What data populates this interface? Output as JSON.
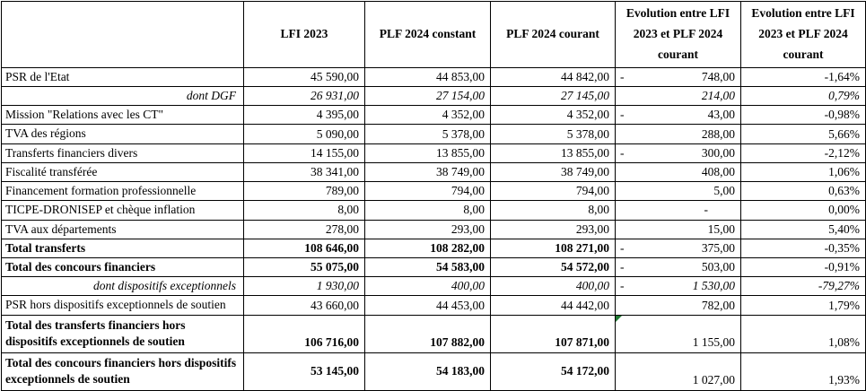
{
  "colors": {
    "flag": "#1f7a33",
    "border": "#000000",
    "background": "#ffffff"
  },
  "table": {
    "columns": [
      {
        "label": ""
      },
      {
        "label": "LFI 2023"
      },
      {
        "label": "PLF 2024 constant"
      },
      {
        "label": "PLF 2024 courant"
      },
      {
        "label": "Evolution entre LFI 2023 et PLF 2024 courant"
      },
      {
        "label": "Evolution entre LFI 2023 et PLF 2024 courant"
      }
    ],
    "rows": [
      {
        "label": "PSR de l'Etat",
        "style": "normal",
        "values": [
          "45 590,00",
          "44 853,00",
          "44 842,00"
        ],
        "evo_neg": true,
        "evo": "748,00",
        "pct": "-1,64%"
      },
      {
        "label": "dont DGF",
        "style": "dont",
        "values": [
          "26 931,00",
          "27 154,00",
          "27 145,00"
        ],
        "evo_neg": false,
        "evo": "214,00",
        "pct": "0,79%"
      },
      {
        "label": "Mission \"Relations avec les CT\"",
        "style": "normal",
        "values": [
          "4 395,00",
          "4 352,00",
          "4 352,00"
        ],
        "evo_neg": true,
        "evo": "43,00",
        "pct": "-0,98%"
      },
      {
        "label": "TVA des régions",
        "style": "normal",
        "values": [
          "5 090,00",
          "5 378,00",
          "5 378,00"
        ],
        "evo_neg": false,
        "evo": "288,00",
        "pct": "5,66%"
      },
      {
        "label": "Transferts financiers divers",
        "style": "normal",
        "values": [
          "14 155,00",
          "13 855,00",
          "13 855,00"
        ],
        "evo_neg": true,
        "evo": "300,00",
        "pct": "-2,12%"
      },
      {
        "label": "Fiscalité transférée",
        "style": "normal",
        "values": [
          "38 341,00",
          "38 749,00",
          "38 749,00"
        ],
        "evo_neg": false,
        "evo": "408,00",
        "pct": "1,06%"
      },
      {
        "label": "Financement formation professionnelle",
        "style": "normal",
        "values": [
          "789,00",
          "794,00",
          "794,00"
        ],
        "evo_neg": false,
        "evo": "5,00",
        "pct": "0,63%"
      },
      {
        "label": "TICPE-DRONISEP et chèque inflation",
        "style": "normal",
        "values": [
          "8,00",
          "8,00",
          "8,00"
        ],
        "evo_neg": false,
        "evo": "-",
        "dash": true,
        "pct": "0,00%"
      },
      {
        "label": "TVA aux départements",
        "style": "normal",
        "values": [
          "278,00",
          "293,00",
          "293,00"
        ],
        "evo_neg": false,
        "evo": "15,00",
        "pct": "5,40%"
      },
      {
        "label": "Total transferts",
        "style": "bold",
        "values": [
          "108 646,00",
          "108 282,00",
          "108 271,00"
        ],
        "evo_neg": true,
        "evo": "375,00",
        "pct": "-0,35%"
      },
      {
        "label": "Total des concours financiers",
        "style": "bold",
        "values": [
          "55 075,00",
          "54 583,00",
          "54 572,00"
        ],
        "evo_neg": true,
        "evo": "503,00",
        "pct": "-0,91%"
      },
      {
        "label": "dont dispositifs exceptionnels",
        "style": "dont",
        "values": [
          "1 930,00",
          "400,00",
          "400,00"
        ],
        "evo_neg": true,
        "evo": "1 530,00",
        "pct": "-79,27%"
      },
      {
        "label": "PSR hors dispositifs exceptionnels de soutien",
        "style": "normal",
        "values": [
          "43 660,00",
          "44 453,00",
          "44 442,00"
        ],
        "evo_neg": false,
        "evo": "782,00",
        "pct": "1,79%"
      },
      {
        "label": "Total des transferts financiers hors dispositifs exceptionnels de soutien",
        "style": "bold tall",
        "values": [
          "106 716,00",
          "107 882,00",
          "107 871,00"
        ],
        "evo_neg": false,
        "evo": "1 155,00",
        "pct": "1,08%",
        "flag": true
      },
      {
        "label": "Total des concours financiers hors dispositifs exceptionnels de soutien",
        "style": "bold tall2",
        "values": [
          "53 145,00",
          "54 183,00",
          "54 172,00"
        ],
        "evo_neg": false,
        "evo": "1 027,00",
        "pct": "1,93%"
      }
    ]
  }
}
